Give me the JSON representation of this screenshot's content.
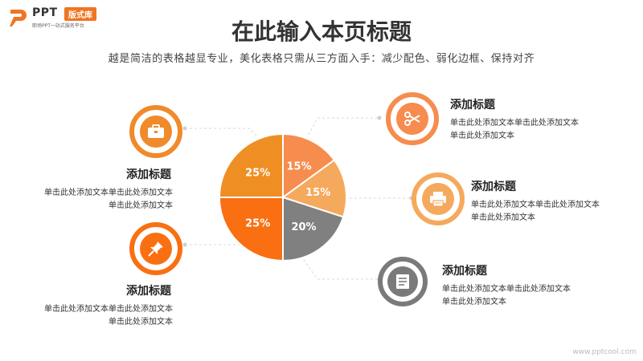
{
  "logo": {
    "ppt": "PPT",
    "badge": "版式库",
    "tagline": "职场PPT一站式服务平台"
  },
  "header": {
    "title": "在此输入本页标题",
    "subtitle": "越是简洁的表格越显专业，美化表格只需从三方面入手：减少配色、弱化边框、保持对齐"
  },
  "chart_data": {
    "type": "pie",
    "slices": [
      {
        "label": "15%",
        "value": 15,
        "color": "#f68c4e"
      },
      {
        "label": "15%",
        "value": 15,
        "color": "#f5a95c"
      },
      {
        "label": "20%",
        "value": 20,
        "color": "#808080"
      },
      {
        "label": "25%",
        "value": 25,
        "color": "#f96f12"
      },
      {
        "label": "25%",
        "value": 25,
        "color": "#ef8f23"
      }
    ]
  },
  "items": {
    "left_top": {
      "heading": "添加标题",
      "line1": "单击此处添加文本单击此处添加文本",
      "line2": "单击此处添加文本",
      "icon": "briefcase-icon"
    },
    "left_bottom": {
      "heading": "添加标题",
      "line1": "单击此处添加文本单击此处添加文本",
      "line2": "单击此处添加文本",
      "icon": "pushpin-icon"
    },
    "right_top": {
      "heading": "添加标题",
      "line1": "单击此处添加文本单击此处添加文本",
      "line2": "单击此处添加文本",
      "icon": "scissors-icon"
    },
    "right_mid": {
      "heading": "添加标题",
      "line1": "单击此处添加文本单击此处添加文本",
      "line2": "单击此处添加文本",
      "icon": "printer-icon"
    },
    "right_bottom": {
      "heading": "添加标题",
      "line1": "单击此处添加文本单击此处添加文本",
      "line2": "单击此处添加文本",
      "icon": "document-icon"
    }
  },
  "watermark": "www.pptcool.com"
}
